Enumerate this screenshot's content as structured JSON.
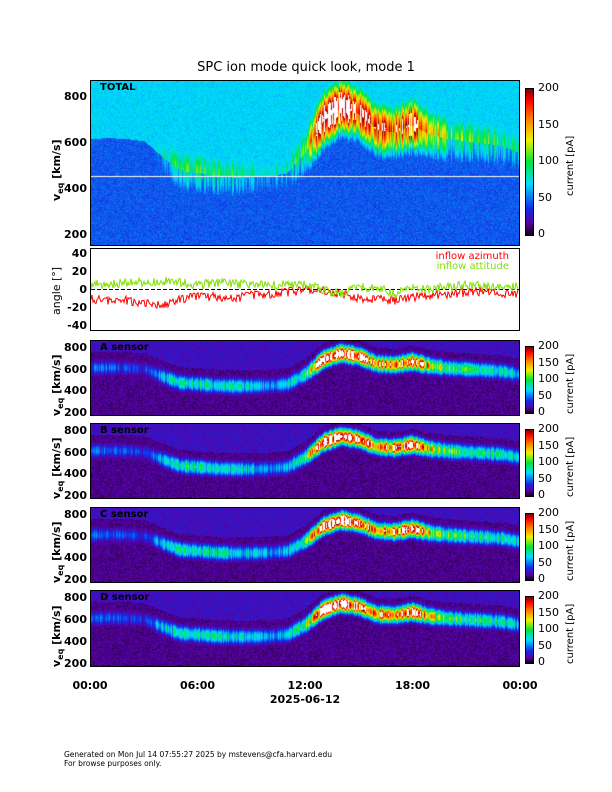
{
  "chart_data": {
    "type": "heatmap",
    "title": "SPC ion mode quick look, mode 1",
    "xlabel": "2025-06-12",
    "xticks": [
      "00:00",
      "06:00",
      "12:00",
      "18:00",
      "00:00"
    ],
    "xlim_hours": [
      0,
      24
    ],
    "spectrogram_panels": [
      {
        "label": "TOTAL",
        "ylabel": "v",
        "ylabel_sub": "eq",
        "ylabel_unit": "[km/s]",
        "yticks": [
          200,
          400,
          600,
          800
        ],
        "ylim": [
          150,
          875
        ],
        "background": "blue",
        "cbar_ticks": [
          0,
          50,
          100,
          150,
          200
        ],
        "cbar_label": "current [pA]"
      },
      {
        "label": "A sensor",
        "ylabel": "v",
        "ylabel_sub": "eq",
        "ylabel_unit": "[km/s]",
        "yticks": [
          200,
          400,
          600,
          800
        ],
        "ylim": [
          175,
          870
        ],
        "background": "dark",
        "cbar_ticks": [
          0,
          50,
          100,
          150,
          200
        ],
        "cbar_label": "current [pA]"
      },
      {
        "label": "B sensor",
        "ylabel": "v",
        "ylabel_sub": "eq",
        "ylabel_unit": "[km/s]",
        "yticks": [
          200,
          400,
          600,
          800
        ],
        "ylim": [
          175,
          870
        ],
        "background": "dark",
        "cbar_ticks": [
          0,
          50,
          100,
          150,
          200
        ],
        "cbar_label": "current [pA]"
      },
      {
        "label": "C sensor",
        "ylabel": "v",
        "ylabel_sub": "eq",
        "ylabel_unit": "[km/s]",
        "yticks": [
          200,
          400,
          600,
          800
        ],
        "ylim": [
          175,
          870
        ],
        "background": "dark",
        "cbar_ticks": [
          0,
          50,
          100,
          150,
          200
        ],
        "cbar_label": "current [pA]"
      },
      {
        "label": "D sensor",
        "ylabel": "v",
        "ylabel_sub": "eq",
        "ylabel_unit": "[km/s]",
        "yticks": [
          200,
          400,
          600,
          800
        ],
        "ylim": [
          175,
          870
        ],
        "background": "dark",
        "cbar_ticks": [
          0,
          50,
          100,
          150,
          200
        ],
        "cbar_label": "current [pA]"
      }
    ],
    "peak_speed_kms_hourly": [
      620,
      625,
      620,
      610,
      540,
      480,
      470,
      455,
      450,
      450,
      455,
      470,
      560,
      700,
      760,
      730,
      660,
      650,
      680,
      640,
      620,
      610,
      600,
      590,
      560
    ],
    "peak_current_pA_hourly": [
      40,
      40,
      35,
      30,
      60,
      75,
      75,
      70,
      70,
      60,
      50,
      60,
      90,
      200,
      220,
      180,
      150,
      160,
      190,
      120,
      90,
      80,
      80,
      70,
      60
    ],
    "angle_panel": {
      "type": "line",
      "ylabel": "angle [°]",
      "yticks": [
        -40,
        -20,
        0,
        20,
        40
      ],
      "ylim": [
        -45,
        45
      ],
      "series": [
        {
          "name": "inflow azimuth",
          "color": "#ff0000",
          "values_hourly": [
            -10,
            -12,
            -12,
            -15,
            -18,
            -10,
            -8,
            -8,
            -10,
            -6,
            -5,
            -3,
            0,
            -2,
            -5,
            -10,
            -10,
            -12,
            -8,
            -7,
            -5,
            -3,
            -2,
            -4,
            -5
          ]
        },
        {
          "name": "inflow attitude",
          "color": "#80e000",
          "values_hourly": [
            5,
            6,
            8,
            8,
            10,
            8,
            5,
            8,
            6,
            6,
            5,
            5,
            5,
            0,
            -5,
            2,
            3,
            -5,
            2,
            0,
            3,
            5,
            4,
            3,
            3
          ]
        }
      ]
    }
  },
  "footer": {
    "line1": "Generated on Mon Jul 14 07:55:27 2025 by mstevens@cfa.harvard.edu",
    "line2": "For browse purposes only."
  }
}
